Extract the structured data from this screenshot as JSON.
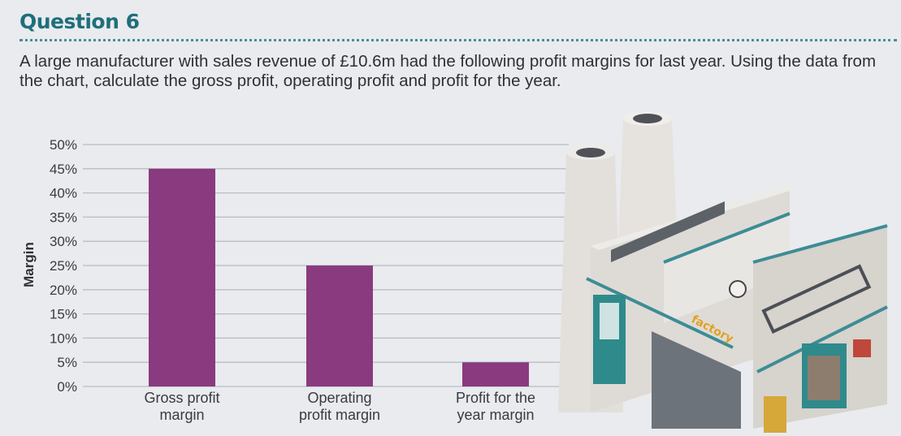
{
  "question": {
    "heading": "Question 6",
    "prompt": "A large manufacturer with sales revenue of £10.6m had the following profit margins for last year. Using the data from the chart, calculate the gross profit, operating profit and profit for the year."
  },
  "illustration": {
    "sign_text": "factory",
    "icon": "factory-illustration"
  },
  "colors": {
    "bar": "#8a3a7f",
    "accent": "#1f6f7a",
    "grid": "#b9bcc2"
  },
  "chart_data": {
    "type": "bar",
    "categories": [
      [
        "Gross profit",
        "margin"
      ],
      [
        "Operating",
        "profit margin"
      ],
      [
        "Profit for the",
        "year margin"
      ]
    ],
    "values": [
      45,
      25,
      5
    ],
    "ylabel": "Margin",
    "yticks": [
      "0%",
      "5%",
      "10%",
      "15%",
      "20%",
      "25%",
      "30%",
      "35%",
      "40%",
      "45%",
      "50%"
    ],
    "ylim": [
      0,
      50
    ],
    "grid": true
  }
}
